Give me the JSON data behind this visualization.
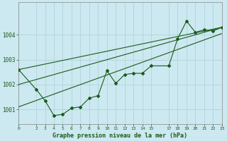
{
  "title": "Graphe pression niveau de la mer (hPa)",
  "bg_color": "#cce8f0",
  "grid_color": "#b0d4dc",
  "line_color": "#1a5c1a",
  "xlim": [
    0,
    23
  ],
  "ylim": [
    1000.4,
    1005.3
  ],
  "xticks": [
    0,
    2,
    3,
    4,
    5,
    6,
    7,
    8,
    9,
    10,
    11,
    12,
    13,
    14,
    15,
    17,
    18,
    19,
    20,
    21,
    22,
    23
  ],
  "yticks": [
    1001,
    1002,
    1003,
    1004
  ],
  "series1_x": [
    0,
    2,
    3,
    4,
    5,
    6,
    7,
    8,
    9,
    10,
    11,
    12,
    13,
    14,
    15,
    17,
    18,
    19,
    20,
    21,
    22,
    23
  ],
  "series1_y": [
    1002.6,
    1001.8,
    1001.35,
    1000.75,
    1000.8,
    1001.05,
    1001.1,
    1001.45,
    1001.55,
    1002.55,
    1002.05,
    1002.4,
    1002.45,
    1002.45,
    1002.75,
    1002.75,
    1003.85,
    1004.55,
    1004.1,
    1004.2,
    1004.15,
    1004.3
  ],
  "series2_x": [
    0,
    23
  ],
  "series2_y": [
    1002.0,
    1004.3
  ],
  "series3_x": [
    0,
    23
  ],
  "series3_y": [
    1001.1,
    1004.05
  ],
  "series4_x": [
    0,
    23
  ],
  "series4_y": [
    1002.6,
    1004.3
  ]
}
